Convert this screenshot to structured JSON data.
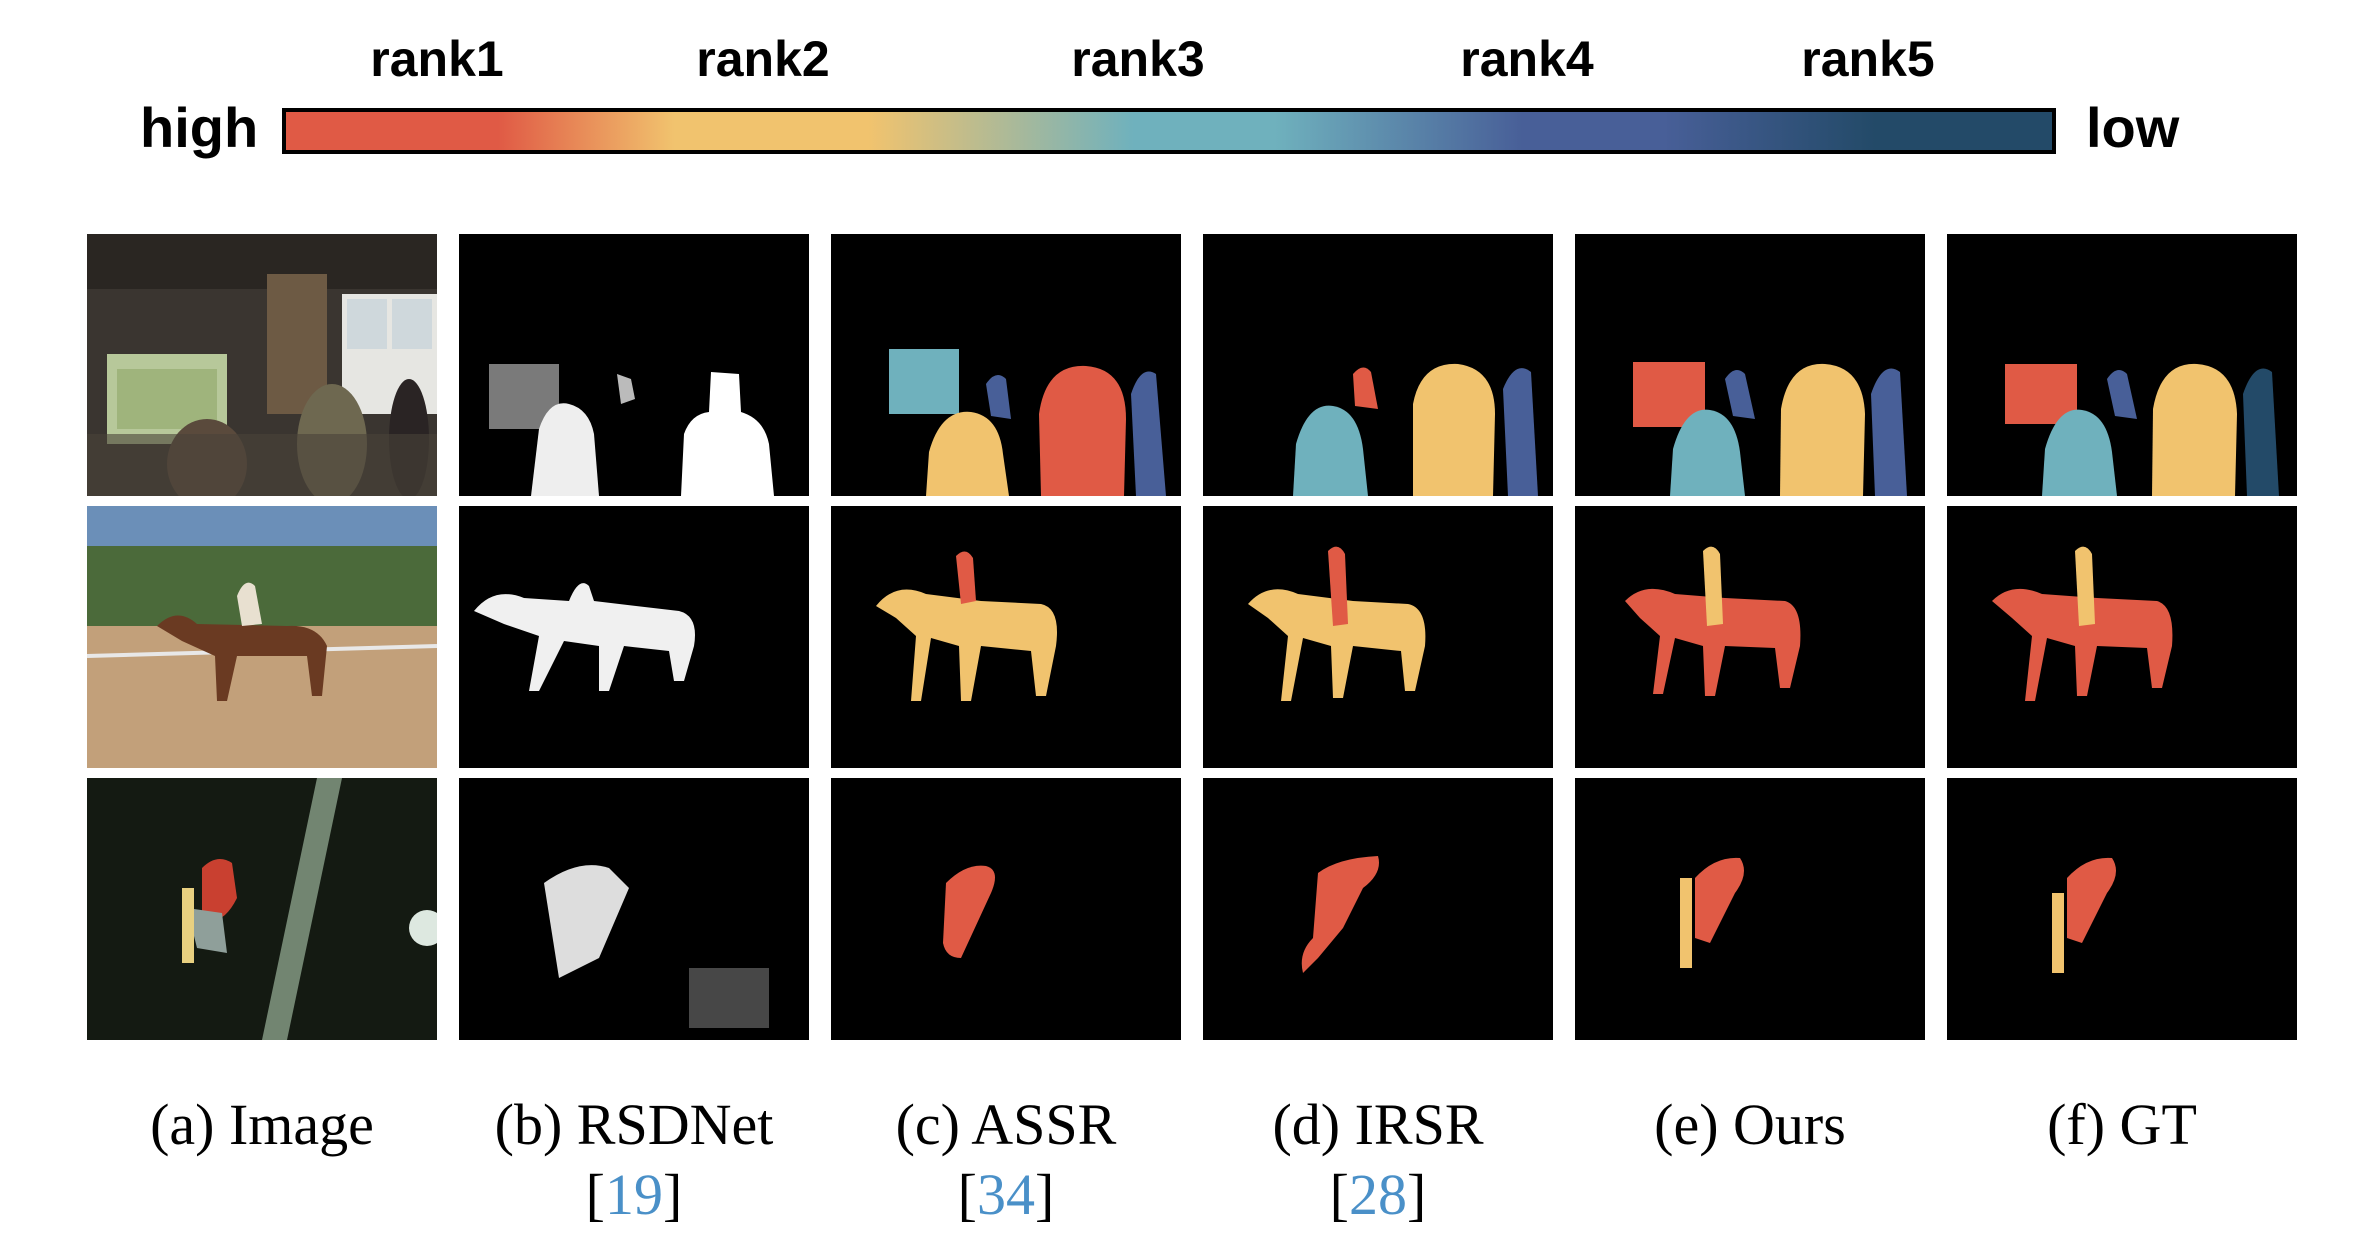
{
  "legend": {
    "high_label": "high",
    "low_label": "low",
    "ranks": [
      "rank1",
      "rank2",
      "rank3",
      "rank4",
      "rank5"
    ],
    "colors": [
      "#e05a45",
      "#f1c36e",
      "#6fb1bd",
      "#485f98",
      "#234a68"
    ]
  },
  "columns": [
    {
      "caption": "(a) Image",
      "citation": ""
    },
    {
      "caption": "(b) RSDNet",
      "citation": "19"
    },
    {
      "caption": "(c) ASSR",
      "citation": "34"
    },
    {
      "caption": "(d) IRSR",
      "citation": "28"
    },
    {
      "caption": "(e) Ours",
      "citation": ""
    },
    {
      "caption": "(f) GT",
      "citation": ""
    }
  ],
  "rows": [
    "indoor-room-people",
    "horse-rider",
    "snowboarder-jump"
  ]
}
